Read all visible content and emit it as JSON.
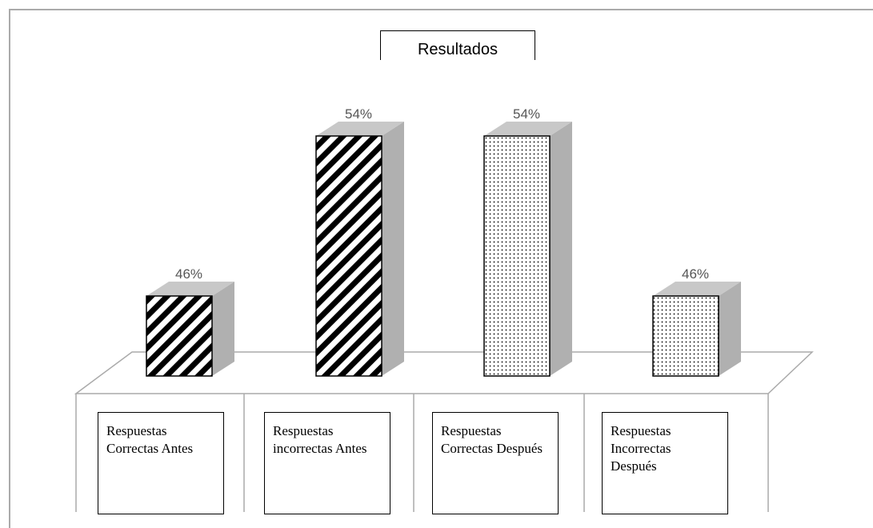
{
  "chart_data": {
    "type": "bar3d",
    "title": "Resultados",
    "categories": [
      "Respuestas Correctas Antes",
      "Respuestas incorrectas Antes",
      "Respuestas Correctas Después",
      "Respuestas Incorrectas Después"
    ],
    "values": [
      46,
      54,
      54,
      46
    ],
    "value_labels": [
      "46%",
      "54%",
      "54%",
      "46%"
    ],
    "patterns": [
      "stripes",
      "stripes",
      "dots",
      "dots"
    ],
    "color": "#000000",
    "ylim": [
      42,
      56
    ]
  }
}
